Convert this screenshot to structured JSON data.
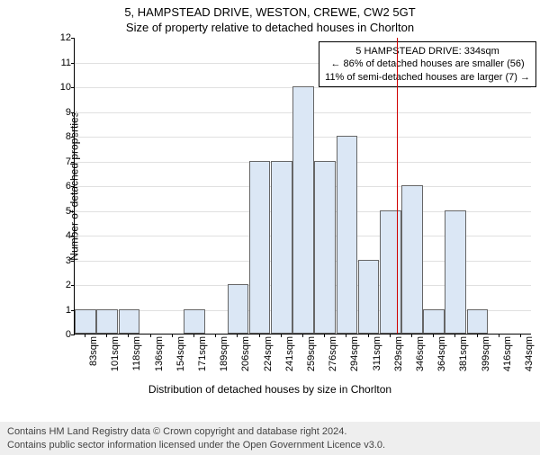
{
  "title": "5, HAMPSTEAD DRIVE, WESTON, CREWE, CW2 5GT",
  "subtitle": "Size of property relative to detached houses in Chorlton",
  "chart": {
    "type": "bar",
    "ylabel": "Number of detached properties",
    "xlabel": "Distribution of detached houses by size in Chorlton",
    "ylim": [
      0,
      12
    ],
    "ytick_step": 1,
    "bar_fill": "#dbe7f5",
    "bar_border": "#666666",
    "grid_color": "#e0e0e0",
    "background": "#ffffff",
    "reference_line_color": "#d00000",
    "reference_x": "334sqm",
    "categories": [
      "83sqm",
      "101sqm",
      "118sqm",
      "136sqm",
      "154sqm",
      "171sqm",
      "189sqm",
      "206sqm",
      "224sqm",
      "241sqm",
      "259sqm",
      "276sqm",
      "294sqm",
      "311sqm",
      "329sqm",
      "346sqm",
      "364sqm",
      "381sqm",
      "399sqm",
      "416sqm",
      "434sqm"
    ],
    "values": [
      1,
      1,
      1,
      0,
      0,
      1,
      0,
      2,
      7,
      7,
      10,
      7,
      8,
      3,
      5,
      6,
      1,
      5,
      1,
      0,
      0
    ],
    "xtick_every": 1,
    "label_fontsize": 11
  },
  "callout": {
    "line1": "5 HAMPSTEAD DRIVE: 334sqm",
    "line2": "← 86% of detached houses are smaller (56)",
    "line3": "11% of semi-detached houses are larger (7) →"
  },
  "footer": {
    "line1": "Contains HM Land Registry data © Crown copyright and database right 2024.",
    "line2": "Contains public sector information licensed under the Open Government Licence v3.0."
  }
}
